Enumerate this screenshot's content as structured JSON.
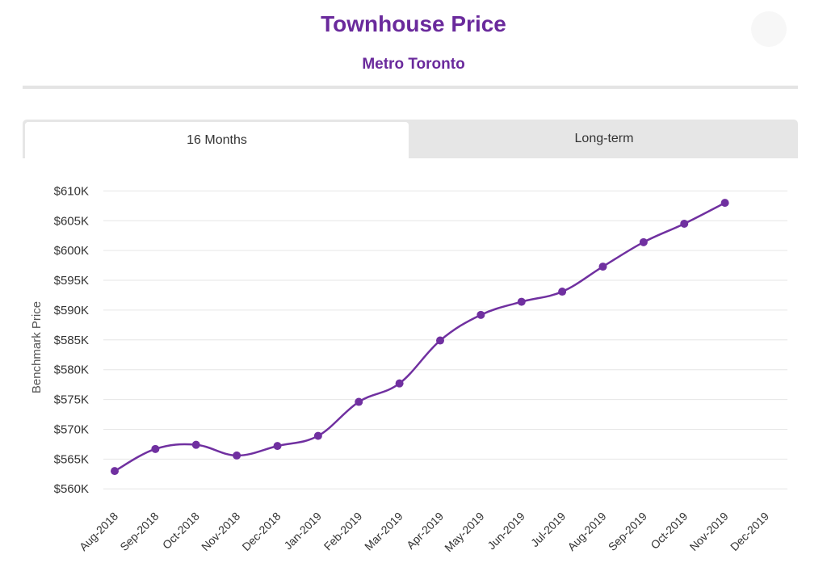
{
  "header": {
    "title": "Townhouse Price",
    "subtitle": "Metro Toronto"
  },
  "tabs": [
    {
      "label": "16 Months",
      "active": true
    },
    {
      "label": "Long-term",
      "active": false
    }
  ],
  "colors": {
    "accent": "#6a2a9c",
    "line": "#7030a0",
    "grid": "#e6e6e6"
  },
  "chart_data": {
    "type": "line",
    "title": "",
    "xlabel": "",
    "ylabel": "Benchmark Price",
    "y_ticks": [
      560000,
      565000,
      570000,
      575000,
      580000,
      585000,
      590000,
      595000,
      600000,
      605000,
      610000
    ],
    "y_tick_labels": [
      "$560K",
      "$565K",
      "$570K",
      "$575K",
      "$580K",
      "$585K",
      "$590K",
      "$595K",
      "$600K",
      "$605K",
      "$610K"
    ],
    "ylim": [
      558000,
      611000
    ],
    "categories": [
      "Aug-2018",
      "Sep-2018",
      "Oct-2018",
      "Nov-2018",
      "Dec-2018",
      "Jan-2019",
      "Feb-2019",
      "Mar-2019",
      "Apr-2019",
      "May-2019",
      "Jun-2019",
      "Jul-2019",
      "Aug-2019",
      "Sep-2019",
      "Oct-2019",
      "Nov-2019",
      "Dec-2019"
    ],
    "series": [
      {
        "values": [
          563000,
          566700,
          567400,
          565600,
          567200,
          568900,
          574600,
          577700,
          584900,
          589200,
          591400,
          593100,
          597300,
          601400,
          604500,
          608000,
          null
        ]
      }
    ],
    "grid": true,
    "legend": "none"
  }
}
